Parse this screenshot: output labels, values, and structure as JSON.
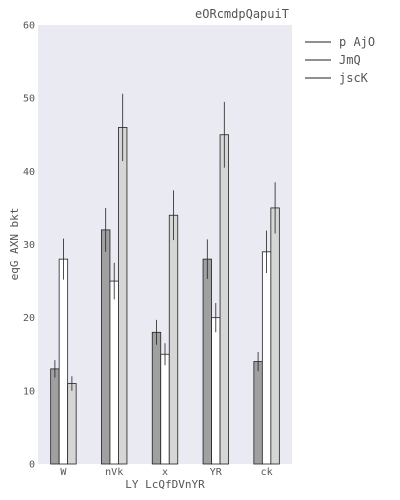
{
  "chart_data": {
    "type": "bar",
    "title": "eORcmdpQapuiT",
    "xlabel": "LY  LcQfDVnYR",
    "ylabel": "eqG AXN  bkt",
    "categories": [
      "W",
      "nVk",
      "x",
      "YR",
      "ck"
    ],
    "ylim": [
      0,
      60
    ],
    "yticks": [
      0,
      10,
      20,
      30,
      40,
      50,
      60
    ],
    "grid": false,
    "legend_placement": "outside-right-top",
    "series": [
      {
        "name": "p AjO",
        "values": [
          13,
          32,
          18,
          28,
          14
        ],
        "errors": [
          1.2,
          3.0,
          1.7,
          2.7,
          1.3
        ],
        "color": "#a0a0a0"
      },
      {
        "name": "JmQ",
        "values": [
          28,
          25,
          15,
          20,
          29
        ],
        "errors": [
          2.8,
          2.5,
          1.5,
          2.0,
          2.9
        ],
        "color": "#ffffff"
      },
      {
        "name": "jscK",
        "values": [
          11,
          46,
          34,
          45,
          35
        ],
        "errors": [
          1.0,
          4.6,
          3.4,
          4.5,
          3.5
        ],
        "color": "#d6d6d6"
      }
    ],
    "plot_background": "#eaeaf2"
  }
}
